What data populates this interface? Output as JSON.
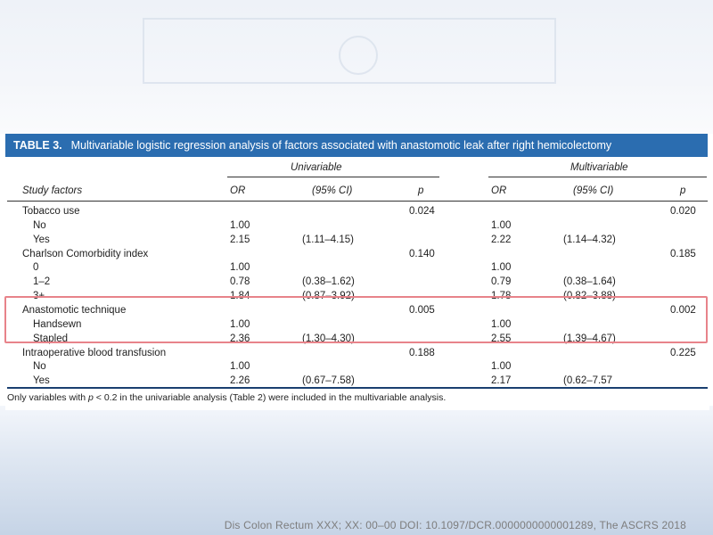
{
  "table": {
    "title_num": "TABLE 3.",
    "title_text": "Multivariable logistic regression analysis of factors associated with anastomotic leak after right hemicolectomy",
    "group_univariable": "Univariable",
    "group_multivariable": "Multivariable",
    "col_factor": "Study factors",
    "col_or": "OR",
    "col_ci": "(95% CI)",
    "col_p": "p",
    "rows": [
      {
        "factor": "Tobacco use",
        "indent": false,
        "u_or": "",
        "u_ci": "",
        "u_p": "0.024",
        "m_or": "",
        "m_ci": "",
        "m_p": "0.020"
      },
      {
        "factor": "No",
        "indent": true,
        "u_or": "1.00",
        "u_ci": "",
        "u_p": "",
        "m_or": "1.00",
        "m_ci": "",
        "m_p": ""
      },
      {
        "factor": "Yes",
        "indent": true,
        "u_or": "2.15",
        "u_ci": "(1.11–4.15)",
        "u_p": "",
        "m_or": "2.22",
        "m_ci": "(1.14–4.32)",
        "m_p": ""
      },
      {
        "factor": "Charlson Comorbidity index",
        "indent": false,
        "u_or": "",
        "u_ci": "",
        "u_p": "0.140",
        "m_or": "",
        "m_ci": "",
        "m_p": "0.185"
      },
      {
        "factor": "0",
        "indent": true,
        "u_or": "1.00",
        "u_ci": "",
        "u_p": "",
        "m_or": "1.00",
        "m_ci": "",
        "m_p": ""
      },
      {
        "factor": "1–2",
        "indent": true,
        "u_or": "0.78",
        "u_ci": "(0.38–1.62)",
        "u_p": "",
        "m_or": "0.79",
        "m_ci": "(0.38–1.64)",
        "m_p": ""
      },
      {
        "factor": "3+",
        "indent": true,
        "u_or": "1.84",
        "u_ci": "(0.87–3.92)",
        "u_p": "",
        "m_or": "1.78",
        "m_ci": "(0.82–3.88)",
        "m_p": ""
      },
      {
        "factor": "Anastomotic technique",
        "indent": false,
        "u_or": "",
        "u_ci": "",
        "u_p": "0.005",
        "m_or": "",
        "m_ci": "",
        "m_p": "0.002"
      },
      {
        "factor": "Handsewn",
        "indent": true,
        "u_or": "1.00",
        "u_ci": "",
        "u_p": "",
        "m_or": "1.00",
        "m_ci": "",
        "m_p": ""
      },
      {
        "factor": "Stapled",
        "indent": true,
        "u_or": "2.36",
        "u_ci": "(1.30–4.30)",
        "u_p": "",
        "m_or": "2.55",
        "m_ci": "(1.39–4.67)",
        "m_p": ""
      },
      {
        "factor": "Intraoperative blood transfusion",
        "indent": false,
        "u_or": "",
        "u_ci": "",
        "u_p": "0.188",
        "m_or": "",
        "m_ci": "",
        "m_p": "0.225"
      },
      {
        "factor": "No",
        "indent": true,
        "u_or": "1.00",
        "u_ci": "",
        "u_p": "",
        "m_or": "1.00",
        "m_ci": "",
        "m_p": ""
      },
      {
        "factor": "Yes",
        "indent": true,
        "u_or": "2.26",
        "u_ci": "(0.67–7.58)",
        "u_p": "",
        "m_or": "2.17",
        "m_ci": "(0.62–7.57",
        "m_p": ""
      }
    ],
    "footnote_pre": "Only variables with ",
    "footnote_p": "p",
    "footnote_post": " < 0.2 in the univariable analysis (Table 2) were included in the multivariable analysis.",
    "highlight_color": "#e8838a",
    "header_color": "#2b6db0"
  },
  "citation": "Dis Colon Rectum XXX; XX: 00–00  DOI: 10.1097/DCR.0000000000001289, The ASCRS 2018"
}
